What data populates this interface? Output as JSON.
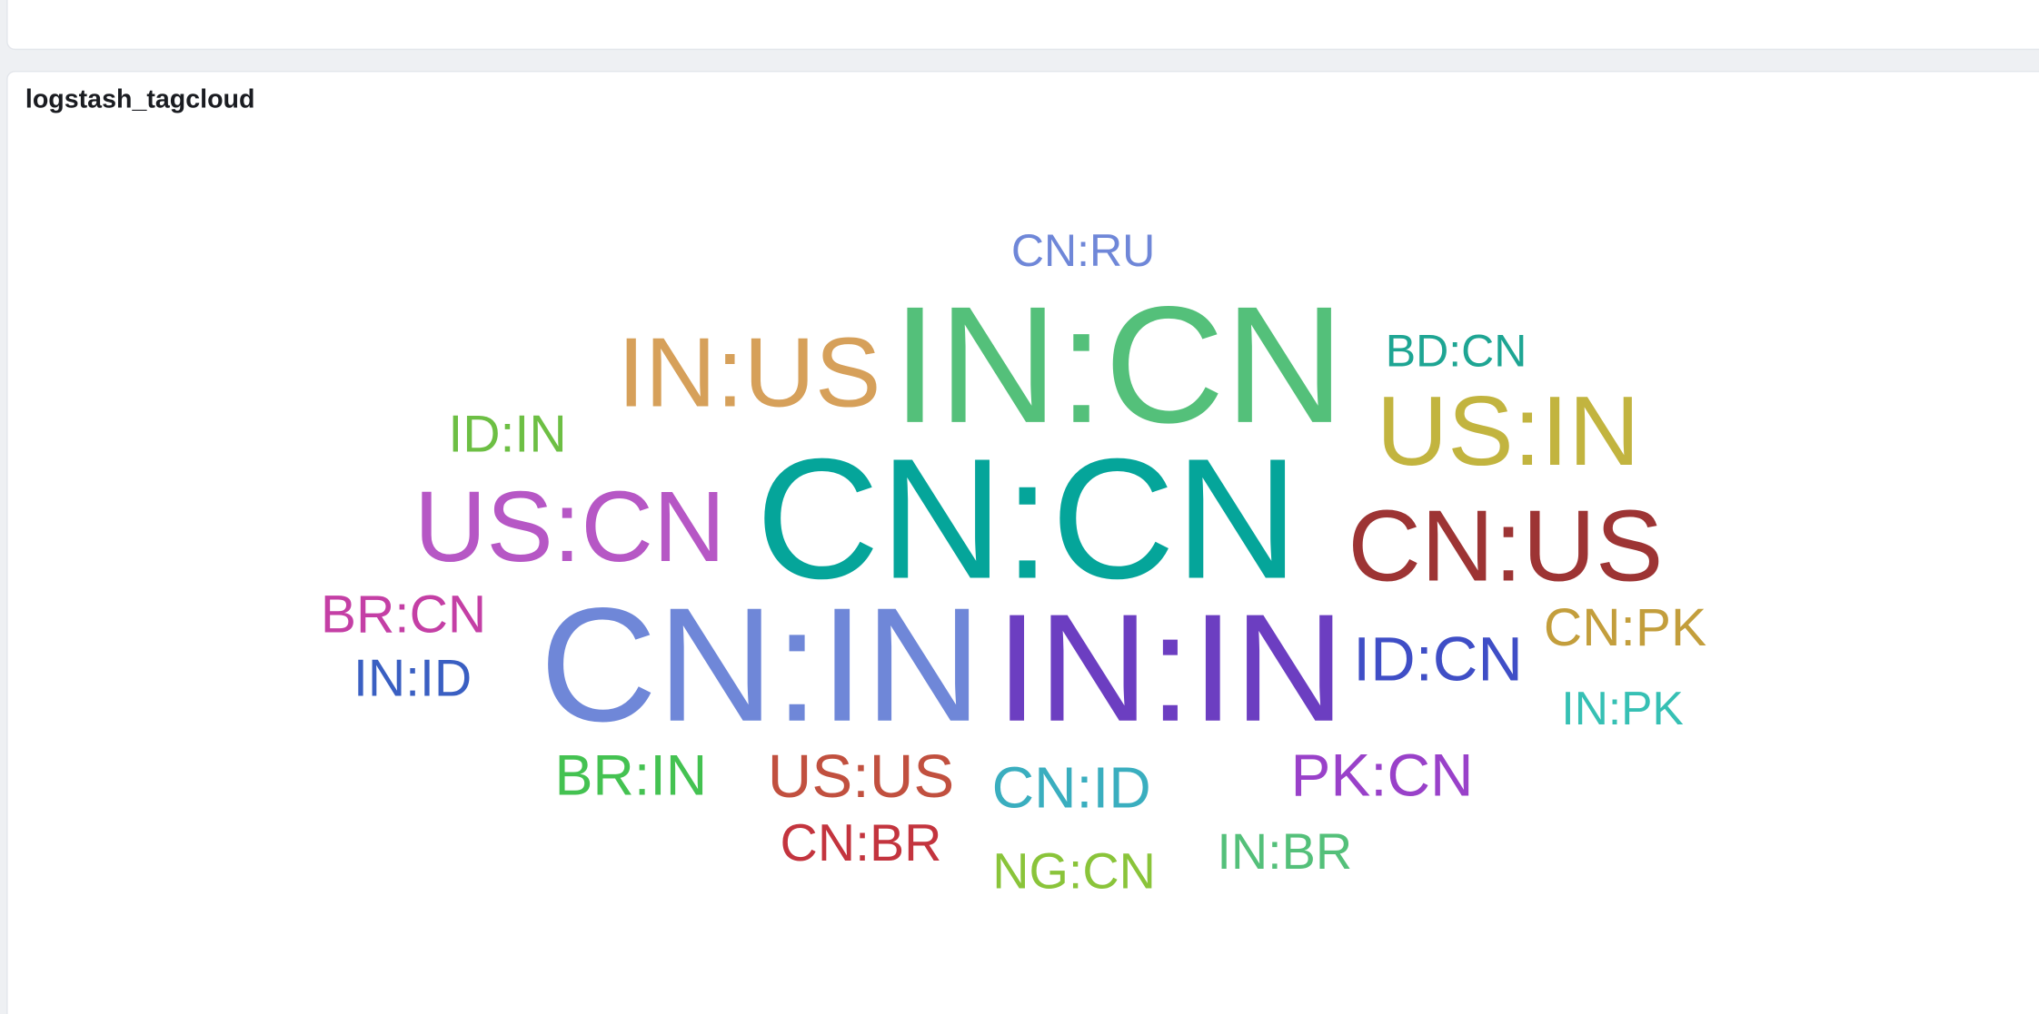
{
  "panel": {
    "title": "logstash_tagcloud"
  },
  "tags": [
    {
      "text": "CN:RU",
      "color": "#6f87d8"
    },
    {
      "text": "IN:CN",
      "color": "#54c07a"
    },
    {
      "text": "IN:US",
      "color": "#d6a05a"
    },
    {
      "text": "BD:CN",
      "color": "#1ea593"
    },
    {
      "text": "US:IN",
      "color": "#c2b43f"
    },
    {
      "text": "ID:IN",
      "color": "#6dbf44"
    },
    {
      "text": "US:CN",
      "color": "#b657c5"
    },
    {
      "text": "CN:CN",
      "color": "#05a59a"
    },
    {
      "text": "CN:US",
      "color": "#9d3434"
    },
    {
      "text": "BR:CN",
      "color": "#c43fa5"
    },
    {
      "text": "CN:PK",
      "color": "#c39e3c"
    },
    {
      "text": "IN:ID",
      "color": "#3a5fc2"
    },
    {
      "text": "CN:IN",
      "color": "#6f87d8"
    },
    {
      "text": "IN:IN",
      "color": "#6c3ec1"
    },
    {
      "text": "ID:CN",
      "color": "#3f4ec6"
    },
    {
      "text": "IN:PK",
      "color": "#36c0b4"
    },
    {
      "text": "BR:IN",
      "color": "#44c251"
    },
    {
      "text": "US:US",
      "color": "#c1503f"
    },
    {
      "text": "CN:ID",
      "color": "#3aaebf"
    },
    {
      "text": "PK:CN",
      "color": "#9941c9"
    },
    {
      "text": "CN:BR",
      "color": "#c3343e"
    },
    {
      "text": "IN:BR",
      "color": "#54c07a"
    },
    {
      "text": "NG:CN",
      "color": "#8ac43a"
    }
  ]
}
